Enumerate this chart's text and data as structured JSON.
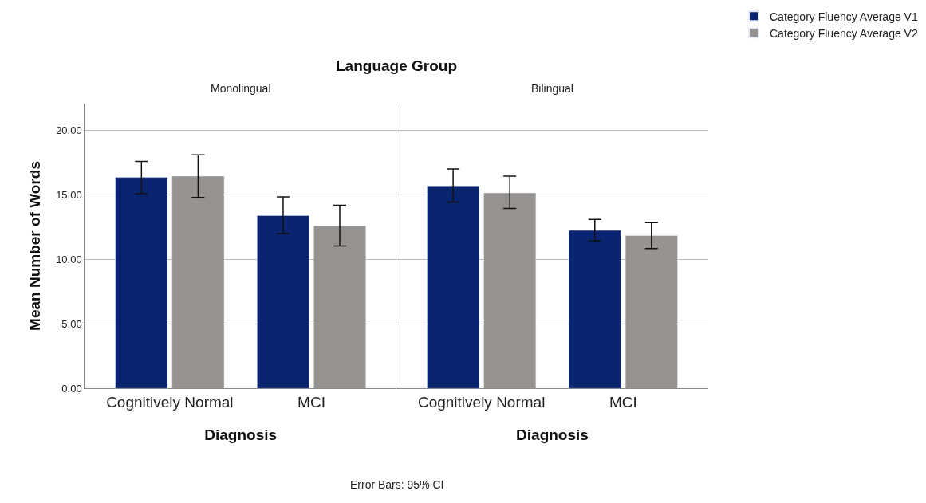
{
  "chart_data": [
    {
      "type": "bar",
      "title": "Monolingual",
      "xlabel": "Diagnosis",
      "ylabel": "Mean Number of Words",
      "categories": [
        "Cognitively Normal",
        "MCI"
      ],
      "series": [
        {
          "name": "Category Fluency Average V1",
          "color": "#0a2470",
          "values": [
            16.35,
            13.4
          ],
          "errors": [
            [
              15.1,
              17.6
            ],
            [
              12.0,
              14.85
            ]
          ]
        },
        {
          "name": "Category Fluency Average V2",
          "color": "#969290",
          "values": [
            16.45,
            12.6
          ],
          "errors": [
            [
              14.8,
              18.1
            ],
            [
              11.05,
              14.2
            ]
          ]
        }
      ],
      "ylim": [
        0,
        22.1
      ],
      "yticks": [
        {
          "value": 0,
          "label": "0.00"
        },
        {
          "value": 5,
          "label": "5.00"
        },
        {
          "value": 10,
          "label": "10.00"
        },
        {
          "value": 15,
          "label": "15.00"
        },
        {
          "value": 20,
          "label": "20.00"
        }
      ],
      "grid": "y",
      "legend": "top right",
      "annotations": [
        "Language Group",
        "Error Bars: 95% CI"
      ]
    },
    {
      "type": "bar",
      "title": "Bilingual",
      "xlabel": "Diagnosis",
      "categories": [
        "Cognitively Normal",
        "MCI"
      ],
      "series": [
        {
          "color": "#0a2470",
          "values": [
            15.7,
            12.25
          ],
          "errors": [
            [
              14.45,
              17.0
            ],
            [
              11.45,
              13.1
            ]
          ]
        },
        {
          "color": "#969290",
          "values": [
            15.15,
            11.85
          ],
          "errors": [
            [
              13.95,
              16.45
            ],
            [
              10.85,
              12.85
            ]
          ]
        }
      ],
      "ylim": [
        0,
        22.1
      ],
      "yticks": [
        0,
        5,
        10,
        15,
        20
      ],
      "grid": "y",
      "tick_labels": "x"
    }
  ]
}
